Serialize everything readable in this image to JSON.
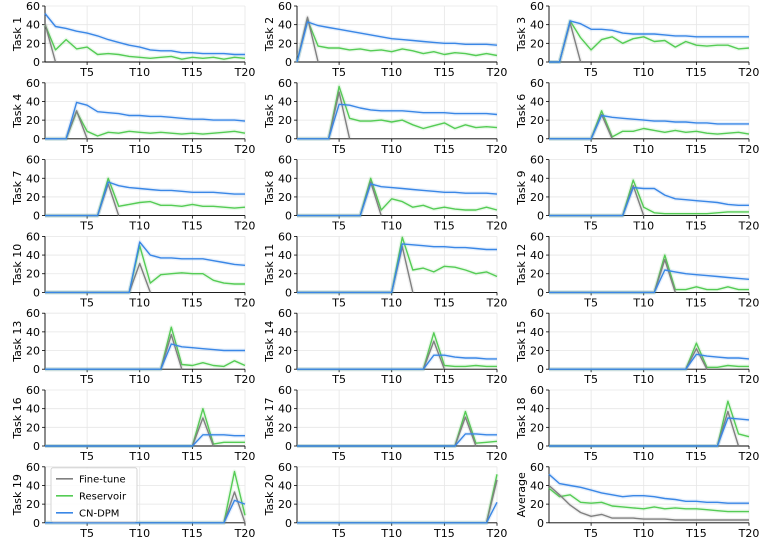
{
  "chart_data": {
    "type": "line",
    "x": [
      1,
      2,
      3,
      4,
      5,
      6,
      7,
      8,
      9,
      10,
      11,
      12,
      13,
      14,
      15,
      16,
      17,
      18,
      19,
      20
    ],
    "xtick_labels": [
      "T5",
      "T10",
      "T15",
      "T20"
    ],
    "xtick_positions": [
      5,
      10,
      15,
      20
    ],
    "ylim": [
      0,
      60
    ],
    "yticks": [
      0,
      20,
      40,
      60
    ],
    "grid": true,
    "colors": {
      "Fine-tune": "#808080",
      "Reservoir": "#55cc55",
      "CN-DPM": "#3a87e6"
    },
    "legend": {
      "placement": "inside panel Task 19, upper-left",
      "entries": [
        "Fine-tune",
        "Reservoir",
        "CN-DPM"
      ]
    },
    "panels": [
      {
        "ylabel": "Task 1",
        "series": [
          {
            "name": "Fine-tune",
            "values": [
              41,
              0
            ]
          },
          {
            "name": "Reservoir",
            "start": 1,
            "values": [
              40,
              13,
              24,
              14,
              16,
              8,
              9,
              8,
              6,
              5,
              4,
              5,
              6,
              3,
              5,
              4,
              5,
              3,
              5,
              4
            ]
          },
          {
            "name": "CN-DPM",
            "start": 1,
            "values": [
              52,
              38,
              36,
              33,
              31,
              28,
              24,
              21,
              18,
              16,
              13,
              12,
              12,
              10,
              10,
              9,
              9,
              9,
              8,
              8
            ]
          }
        ]
      },
      {
        "ylabel": "Task 2",
        "series": [
          {
            "name": "Fine-tune",
            "start": 2,
            "values": [
              48,
              0
            ]
          },
          {
            "name": "Reservoir",
            "start": 2,
            "values": [
              45,
              17,
              15,
              15,
              13,
              14,
              12,
              13,
              11,
              14,
              12,
              9,
              11,
              8,
              10,
              9,
              7,
              9,
              7
            ]
          },
          {
            "name": "CN-DPM",
            "start": 2,
            "values": [
              43,
              39,
              37,
              35,
              33,
              31,
              29,
              27,
              25,
              24,
              23,
              22,
              21,
              20,
              20,
              19,
              19,
              19,
              18
            ]
          }
        ]
      },
      {
        "ylabel": "Task 3",
        "series": [
          {
            "name": "Fine-tune",
            "start": 3,
            "values": [
              42,
              0
            ]
          },
          {
            "name": "Reservoir",
            "start": 3,
            "values": [
              44,
              26,
              13,
              24,
              27,
              20,
              25,
              27,
              22,
              23,
              16,
              22,
              18,
              17,
              18,
              18,
              14,
              15
            ]
          },
          {
            "name": "CN-DPM",
            "start": 3,
            "values": [
              44,
              41,
              35,
              35,
              34,
              31,
              30,
              30,
              30,
              29,
              28,
              28,
              27,
              27,
              27,
              27,
              27,
              27
            ]
          }
        ]
      },
      {
        "ylabel": "Task 4",
        "series": [
          {
            "name": "Fine-tune",
            "start": 4,
            "values": [
              30,
              0
            ]
          },
          {
            "name": "Reservoir",
            "start": 4,
            "values": [
              29,
              8,
              3,
              7,
              6,
              8,
              7,
              6,
              7,
              6,
              5,
              6,
              5,
              6,
              7,
              8,
              6
            ]
          },
          {
            "name": "CN-DPM",
            "start": 4,
            "values": [
              39,
              36,
              29,
              28,
              27,
              25,
              25,
              24,
              24,
              23,
              22,
              21,
              21,
              20,
              20,
              20,
              19
            ]
          }
        ]
      },
      {
        "ylabel": "Task 5",
        "series": [
          {
            "name": "Fine-tune",
            "start": 5,
            "values": [
              50,
              0
            ]
          },
          {
            "name": "Reservoir",
            "start": 5,
            "values": [
              56,
              22,
              19,
              19,
              20,
              18,
              20,
              15,
              11,
              14,
              17,
              11,
              15,
              12,
              13,
              12
            ]
          },
          {
            "name": "CN-DPM",
            "start": 5,
            "values": [
              37,
              36,
              33,
              31,
              30,
              30,
              30,
              29,
              28,
              28,
              28,
              27,
              27,
              27,
              27,
              26
            ]
          }
        ]
      },
      {
        "ylabel": "Task 6",
        "series": [
          {
            "name": "Fine-tune",
            "start": 6,
            "values": [
              26,
              0
            ]
          },
          {
            "name": "Reservoir",
            "start": 6,
            "values": [
              30,
              2,
              8,
              8,
              11,
              9,
              7,
              9,
              7,
              8,
              6,
              5,
              6,
              7,
              5
            ]
          },
          {
            "name": "CN-DPM",
            "start": 6,
            "values": [
              25,
              23,
              22,
              21,
              20,
              19,
              19,
              18,
              18,
              17,
              17,
              16,
              16,
              16,
              16
            ]
          }
        ]
      },
      {
        "ylabel": "Task 7",
        "series": [
          {
            "name": "Fine-tune",
            "start": 7,
            "values": [
              34,
              0
            ]
          },
          {
            "name": "Reservoir",
            "start": 7,
            "values": [
              40,
              10,
              12,
              14,
              15,
              11,
              11,
              10,
              12,
              10,
              10,
              9,
              8,
              9
            ]
          },
          {
            "name": "CN-DPM",
            "start": 7,
            "values": [
              36,
              32,
              30,
              29,
              28,
              27,
              27,
              26,
              25,
              25,
              25,
              24,
              23,
              23
            ]
          }
        ]
      },
      {
        "ylabel": "Task 8",
        "series": [
          {
            "name": "Fine-tune",
            "start": 8,
            "values": [
              36,
              0
            ]
          },
          {
            "name": "Reservoir",
            "start": 8,
            "values": [
              40,
              6,
              18,
              15,
              9,
              11,
              7,
              9,
              7,
              6,
              6,
              9,
              6
            ]
          },
          {
            "name": "CN-DPM",
            "start": 8,
            "values": [
              34,
              31,
              30,
              29,
              28,
              27,
              26,
              25,
              25,
              24,
              24,
              24,
              23
            ]
          }
        ]
      },
      {
        "ylabel": "Task 9",
        "series": [
          {
            "name": "Fine-tune",
            "start": 9,
            "values": [
              32,
              0
            ]
          },
          {
            "name": "Reservoir",
            "start": 9,
            "values": [
              38,
              9,
              3,
              2,
              2,
              2,
              2,
              2,
              3,
              4,
              4,
              4
            ]
          },
          {
            "name": "CN-DPM",
            "start": 9,
            "values": [
              30,
              29,
              29,
              22,
              18,
              17,
              16,
              15,
              14,
              12,
              11,
              11
            ]
          }
        ]
      },
      {
        "ylabel": "Task 10",
        "series": [
          {
            "name": "Fine-tune",
            "start": 10,
            "values": [
              31,
              0
            ]
          },
          {
            "name": "Reservoir",
            "start": 10,
            "values": [
              50,
              10,
              19,
              20,
              21,
              20,
              20,
              13,
              10,
              9,
              9
            ]
          },
          {
            "name": "CN-DPM",
            "start": 10,
            "values": [
              54,
              40,
              37,
              37,
              36,
              36,
              36,
              34,
              32,
              30,
              29
            ]
          }
        ]
      },
      {
        "ylabel": "Task 11",
        "series": [
          {
            "name": "Fine-tune",
            "start": 11,
            "values": [
              49,
              0
            ]
          },
          {
            "name": "Reservoir",
            "start": 11,
            "values": [
              59,
              24,
              26,
              22,
              28,
              27,
              24,
              20,
              22,
              17
            ]
          },
          {
            "name": "CN-DPM",
            "start": 11,
            "values": [
              52,
              51,
              50,
              49,
              49,
              48,
              48,
              47,
              46,
              46
            ]
          }
        ]
      },
      {
        "ylabel": "Task 12",
        "series": [
          {
            "name": "Fine-tune",
            "start": 12,
            "values": [
              35,
              0
            ]
          },
          {
            "name": "Reservoir",
            "start": 12,
            "values": [
              40,
              3,
              3,
              6,
              3,
              3,
              6,
              3,
              3
            ]
          },
          {
            "name": "CN-DPM",
            "start": 12,
            "values": [
              24,
              22,
              20,
              19,
              18,
              17,
              16,
              15,
              14
            ]
          }
        ]
      },
      {
        "ylabel": "Task 13",
        "series": [
          {
            "name": "Fine-tune",
            "start": 13,
            "values": [
              37,
              0
            ]
          },
          {
            "name": "Reservoir",
            "start": 13,
            "values": [
              45,
              5,
              4,
              7,
              4,
              3,
              9,
              4
            ]
          },
          {
            "name": "CN-DPM",
            "start": 13,
            "values": [
              27,
              24,
              23,
              22,
              21,
              20,
              20,
              20
            ]
          }
        ]
      },
      {
        "ylabel": "Task 14",
        "series": [
          {
            "name": "Fine-tune",
            "start": 14,
            "values": [
              30,
              0
            ]
          },
          {
            "name": "Reservoir",
            "start": 14,
            "values": [
              39,
              4,
              3,
              3,
              4,
              3,
              3
            ]
          },
          {
            "name": "CN-DPM",
            "start": 14,
            "values": [
              15,
              15,
              13,
              12,
              12,
              11,
              11
            ]
          }
        ]
      },
      {
        "ylabel": "Task 15",
        "series": [
          {
            "name": "Fine-tune",
            "start": 15,
            "values": [
              22,
              0
            ]
          },
          {
            "name": "Reservoir",
            "start": 15,
            "values": [
              28,
              2,
              2,
              4,
              3,
              3
            ]
          },
          {
            "name": "CN-DPM",
            "start": 15,
            "values": [
              16,
              14,
              13,
              12,
              12,
              11
            ]
          }
        ]
      },
      {
        "ylabel": "Task 16",
        "series": [
          {
            "name": "Fine-tune",
            "start": 16,
            "values": [
              30,
              0
            ]
          },
          {
            "name": "Reservoir",
            "start": 16,
            "values": [
              40,
              2,
              4,
              4,
              4
            ]
          },
          {
            "name": "CN-DPM",
            "start": 16,
            "values": [
              12,
              12,
              12,
              11,
              11
            ]
          }
        ]
      },
      {
        "ylabel": "Task 17",
        "series": [
          {
            "name": "Fine-tune",
            "start": 17,
            "values": [
              31,
              0
            ]
          },
          {
            "name": "Reservoir",
            "start": 17,
            "values": [
              37,
              3,
              4,
              5
            ]
          },
          {
            "name": "CN-DPM",
            "start": 17,
            "values": [
              13,
              13,
              12,
              12
            ]
          }
        ]
      },
      {
        "ylabel": "Task 18",
        "series": [
          {
            "name": "Fine-tune",
            "start": 18,
            "values": [
              37,
              0
            ]
          },
          {
            "name": "Reservoir",
            "start": 18,
            "values": [
              48,
              13,
              10
            ]
          },
          {
            "name": "CN-DPM",
            "start": 18,
            "values": [
              30,
              29,
              28
            ]
          }
        ]
      },
      {
        "ylabel": "Task 19",
        "series": [
          {
            "name": "Fine-tune",
            "start": 19,
            "values": [
              33,
              0
            ]
          },
          {
            "name": "Reservoir",
            "start": 19,
            "values": [
              55,
              8
            ]
          },
          {
            "name": "CN-DPM",
            "start": 19,
            "values": [
              24,
              20
            ]
          }
        ]
      },
      {
        "ylabel": "Task 20",
        "series": [
          {
            "name": "Fine-tune",
            "start": 20,
            "values": [
              46
            ]
          },
          {
            "name": "Reservoir",
            "start": 20,
            "values": [
              52
            ]
          },
          {
            "name": "CN-DPM",
            "start": 20,
            "values": [
              22
            ]
          }
        ]
      },
      {
        "ylabel": "Average",
        "series": [
          {
            "name": "Fine-tune",
            "start": 1,
            "values": [
              40,
              30,
              19,
              11,
              7,
              9,
              5,
              5,
              5,
              4,
              4,
              4,
              3,
              3,
              3,
              3,
              3,
              3,
              3,
              3
            ]
          },
          {
            "name": "Reservoir",
            "start": 1,
            "values": [
              37,
              28,
              30,
              22,
              21,
              22,
              18,
              17,
              16,
              15,
              17,
              15,
              16,
              15,
              15,
              14,
              13,
              12,
              12,
              12
            ]
          },
          {
            "name": "CN-DPM",
            "start": 1,
            "values": [
              52,
              42,
              40,
              38,
              35,
              32,
              30,
              28,
              29,
              29,
              28,
              26,
              25,
              23,
              23,
              22,
              22,
              21,
              21,
              21
            ]
          }
        ]
      }
    ]
  }
}
